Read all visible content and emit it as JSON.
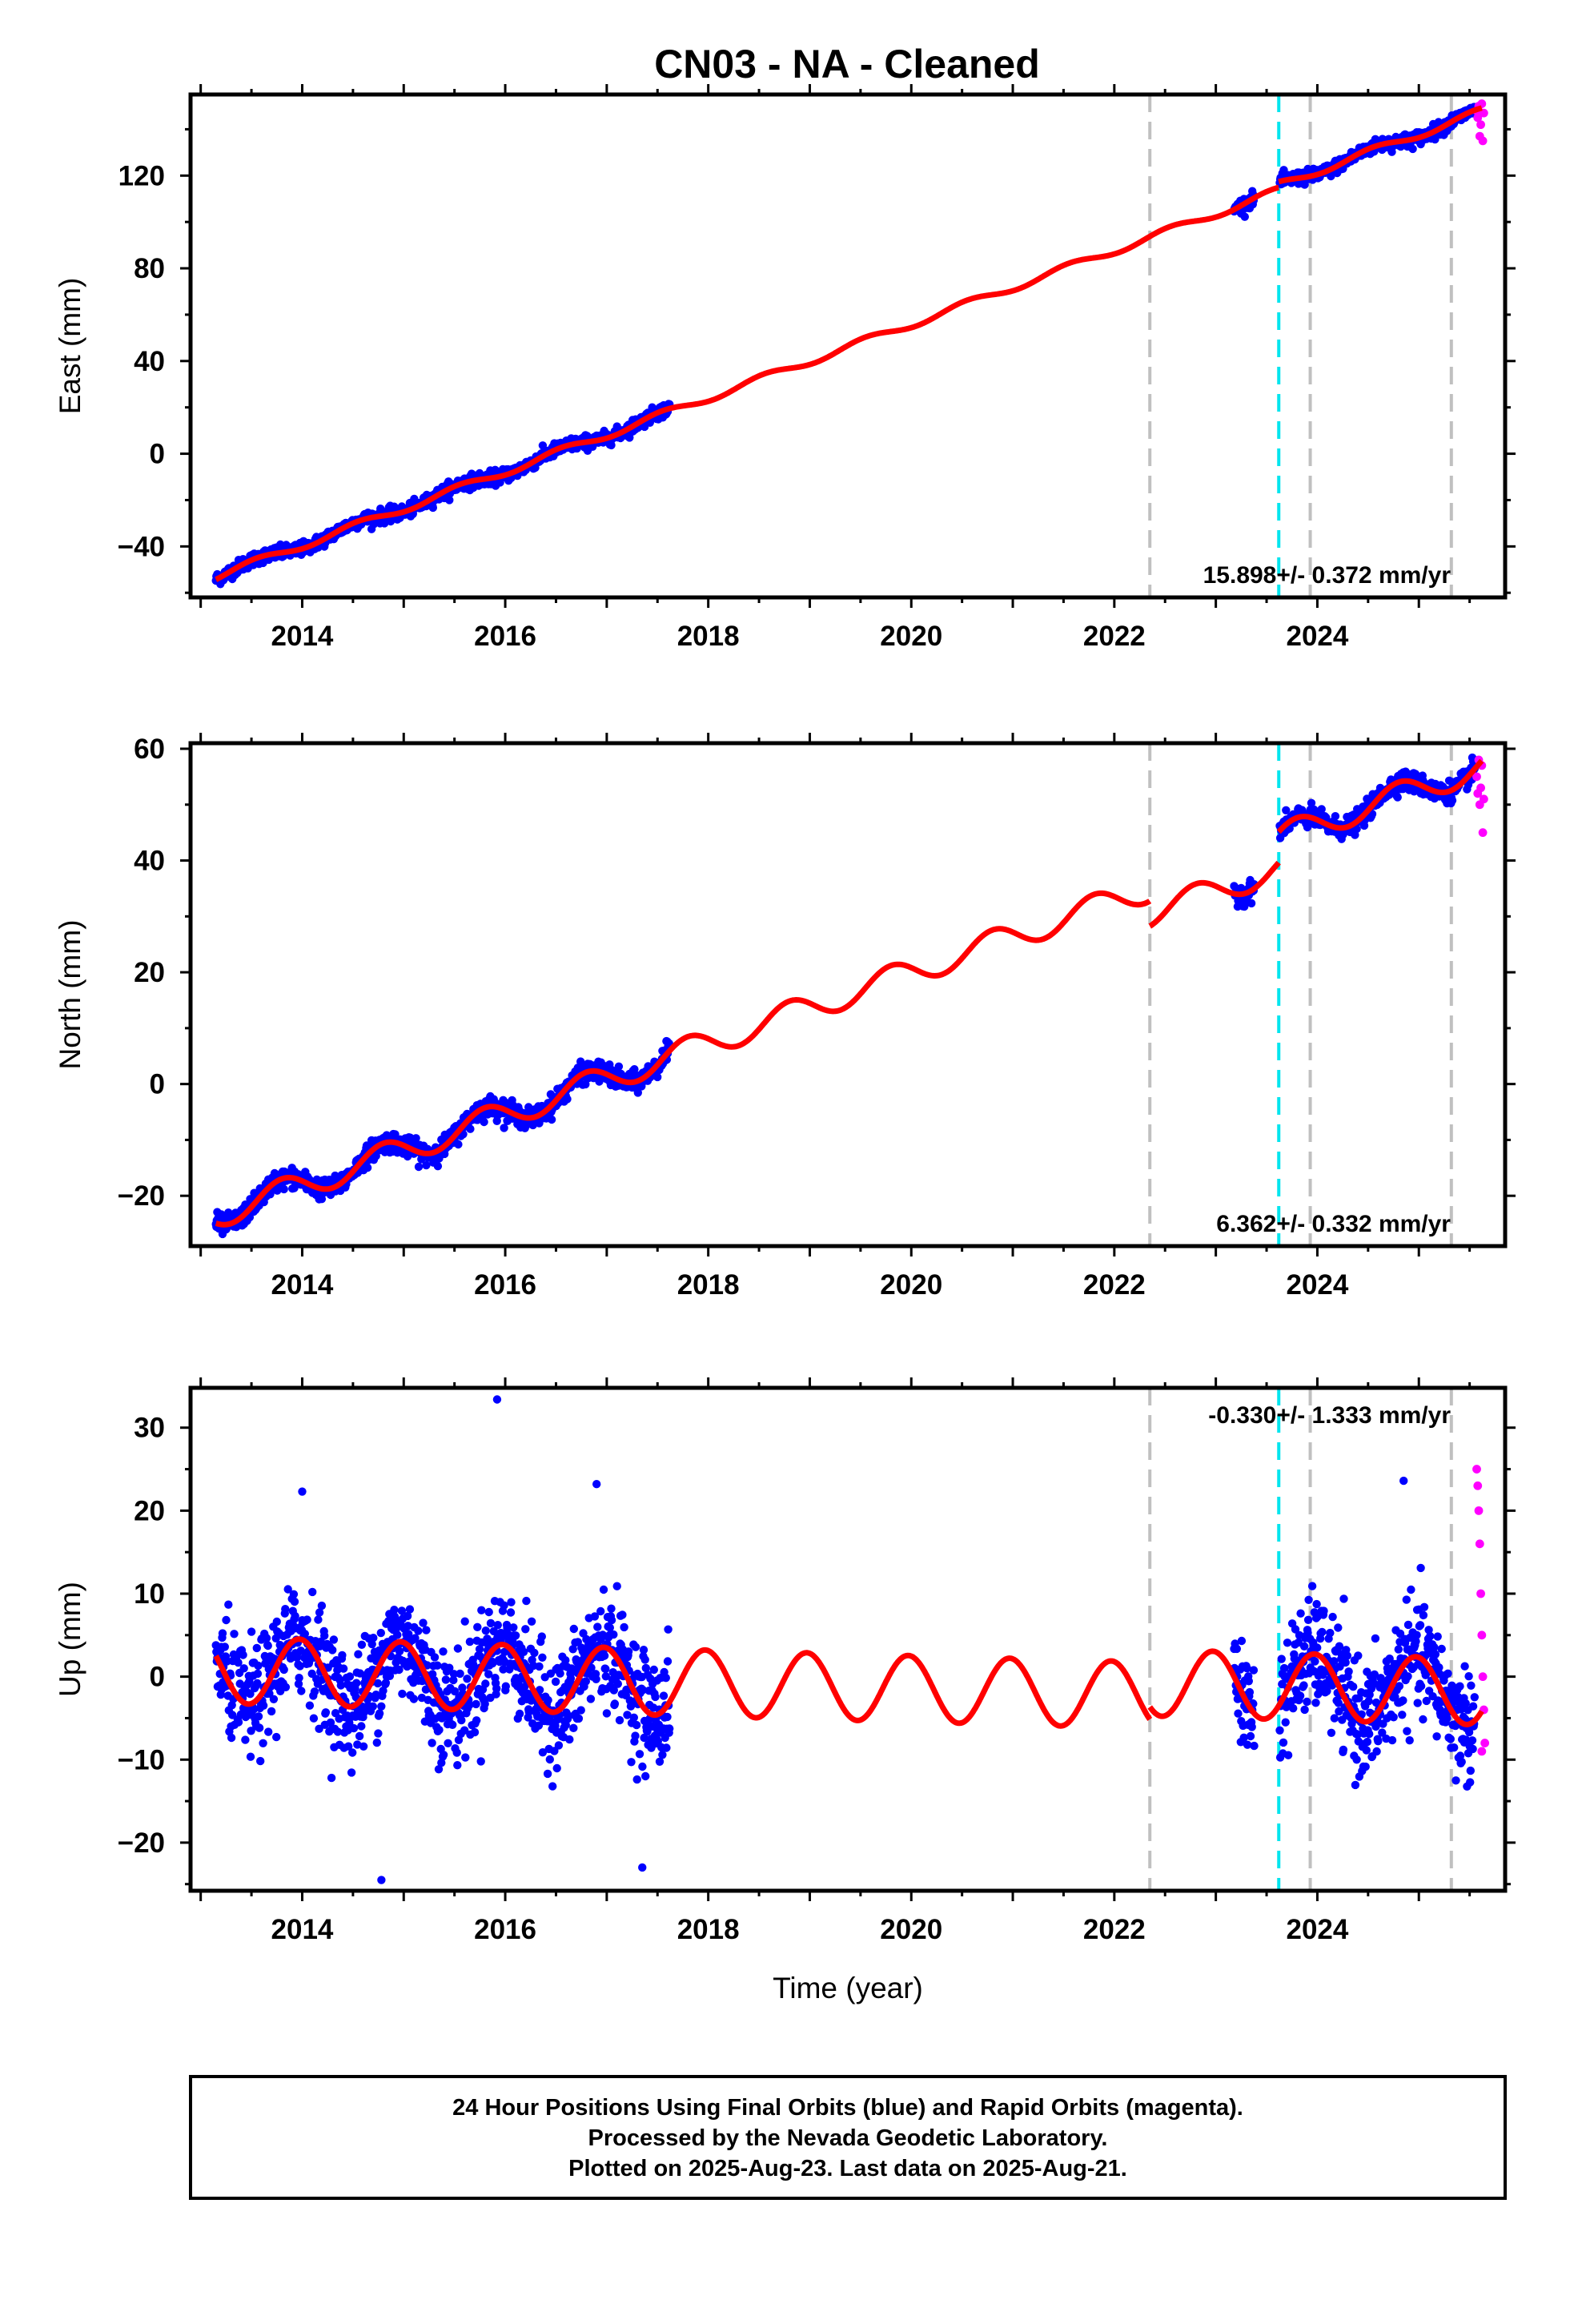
{
  "title": "CN03  - NA - Cleaned",
  "footer": {
    "lines": [
      "24 Hour Positions Using Final Orbits (blue) and Rapid Orbits (magenta).",
      "Processed by the Nevada Geodetic Laboratory.",
      "Plotted on 2025-Aug-23. Last data on 2025-Aug-21."
    ]
  },
  "colors": {
    "final_points": "#0000ff",
    "rapid_points": "#ff00ff",
    "model_line": "#ff0000",
    "equipment_change_line": "#c0c0c0",
    "earthquake_line": "#00e5ee"
  },
  "chart_data": [
    {
      "type": "scatter",
      "panel": "east",
      "ylabel": "East (mm)",
      "xlabel": "",
      "xlim": [
        2012.9,
        2025.85
      ],
      "ylim": [
        -62,
        155
      ],
      "xticks": [
        2014,
        2016,
        2018,
        2020,
        2022,
        2024
      ],
      "yticks": [
        -40,
        0,
        40,
        80,
        120
      ],
      "rate_label": "15.898+/- 0.372 mm/yr",
      "rate_label_position": "bottom-right",
      "vertical_lines": [
        {
          "x": 2022.35,
          "kind": "equipment"
        },
        {
          "x": 2023.62,
          "kind": "earthquake"
        },
        {
          "x": 2023.93,
          "kind": "equipment"
        },
        {
          "x": 2025.32,
          "kind": "equipment"
        }
      ],
      "model": {
        "x0": 2013.15,
        "y0": -53.0,
        "rate": 15.898,
        "offsets": [
          {
            "x": 2023.62,
            "dy": 2.5
          }
        ],
        "annual_amp": 1.6,
        "annual_phase": 0.3,
        "x_start": 2013.15,
        "x_end": 2025.62
      },
      "final_segments": [
        {
          "x_start": 2013.15,
          "x_end": 2017.62,
          "scatter": 2.6
        },
        {
          "x_start": 2023.18,
          "x_end": 2023.38,
          "scatter": 2.6
        },
        {
          "x_start": 2023.63,
          "x_end": 2025.55,
          "scatter": 2.6
        }
      ],
      "rapid_points": [
        {
          "x": 2025.57,
          "y": 148
        },
        {
          "x": 2025.58,
          "y": 145
        },
        {
          "x": 2025.59,
          "y": 150
        },
        {
          "x": 2025.6,
          "y": 137
        },
        {
          "x": 2025.61,
          "y": 142
        },
        {
          "x": 2025.62,
          "y": 151
        },
        {
          "x": 2025.63,
          "y": 135
        },
        {
          "x": 2025.64,
          "y": 147
        }
      ]
    },
    {
      "type": "scatter",
      "panel": "north",
      "ylabel": "North (mm)",
      "xlabel": "",
      "xlim": [
        2012.9,
        2025.85
      ],
      "ylim": [
        -29,
        61
      ],
      "xticks": [
        2014,
        2016,
        2018,
        2020,
        2022,
        2024
      ],
      "yticks": [
        -20,
        0,
        20,
        40,
        60
      ],
      "rate_label": "6.362+/- 0.332 mm/yr",
      "rate_label_position": "bottom-right",
      "vertical_lines": [
        {
          "x": 2022.35,
          "kind": "equipment"
        },
        {
          "x": 2023.62,
          "kind": "earthquake"
        },
        {
          "x": 2023.93,
          "kind": "equipment"
        },
        {
          "x": 2025.32,
          "kind": "equipment"
        }
      ],
      "model": {
        "x0": 2013.15,
        "y0": -23.5,
        "rate": 6.362,
        "offsets": [
          {
            "x": 2022.35,
            "dy": -4.5
          },
          {
            "x": 2023.62,
            "dy": 5.5
          }
        ],
        "annual_amp": 2.4,
        "annual_phase": 0.55,
        "x_start": 2013.15,
        "x_end": 2025.62
      },
      "final_segments": [
        {
          "x_start": 2013.15,
          "x_end": 2017.62,
          "scatter": 1.6
        },
        {
          "x_start": 2023.18,
          "x_end": 2023.38,
          "scatter": 1.6
        },
        {
          "x_start": 2023.63,
          "x_end": 2025.55,
          "scatter": 1.6
        }
      ],
      "rapid_points": [
        {
          "x": 2025.57,
          "y": 55
        },
        {
          "x": 2025.58,
          "y": 52
        },
        {
          "x": 2025.59,
          "y": 58
        },
        {
          "x": 2025.6,
          "y": 50
        },
        {
          "x": 2025.61,
          "y": 53
        },
        {
          "x": 2025.62,
          "y": 57
        },
        {
          "x": 2025.63,
          "y": 45
        },
        {
          "x": 2025.64,
          "y": 51
        }
      ]
    },
    {
      "type": "scatter",
      "panel": "up",
      "ylabel": "Up (mm)",
      "xlabel": "Time (year)",
      "xlim": [
        2012.9,
        2025.85
      ],
      "ylim": [
        -25.8,
        34.8
      ],
      "xticks": [
        2014,
        2016,
        2018,
        2020,
        2022,
        2024
      ],
      "yticks": [
        -20,
        -10,
        0,
        10,
        20,
        30
      ],
      "rate_label": "-0.330+/- 1.333 mm/yr",
      "rate_label_position": "top-right",
      "vertical_lines": [
        {
          "x": 2022.35,
          "kind": "equipment"
        },
        {
          "x": 2023.62,
          "kind": "earthquake"
        },
        {
          "x": 2023.93,
          "kind": "equipment"
        },
        {
          "x": 2025.32,
          "kind": "equipment"
        }
      ],
      "model": {
        "x0": 2013.15,
        "y0": 0.8,
        "rate": -0.33,
        "offsets": [
          {
            "x": 2022.35,
            "dy": 1.5
          }
        ],
        "annual_amp": 4.0,
        "annual_phase": 0.72,
        "x_start": 2013.15,
        "x_end": 2025.62
      },
      "final_segments": [
        {
          "x_start": 2013.15,
          "x_end": 2017.62,
          "scatter": 6.0
        },
        {
          "x_start": 2023.18,
          "x_end": 2023.38,
          "scatter": 6.0
        },
        {
          "x_start": 2023.63,
          "x_end": 2025.55,
          "scatter": 6.0
        }
      ],
      "outlier_points": [
        {
          "x": 2015.92,
          "y": 33.4
        },
        {
          "x": 2014.0,
          "y": 22.3
        },
        {
          "x": 2016.9,
          "y": 23.2
        },
        {
          "x": 2024.85,
          "y": 23.6
        },
        {
          "x": 2014.78,
          "y": -24.5
        },
        {
          "x": 2017.35,
          "y": -23.0
        }
      ],
      "rapid_points": [
        {
          "x": 2025.57,
          "y": 25
        },
        {
          "x": 2025.58,
          "y": 23
        },
        {
          "x": 2025.59,
          "y": 20
        },
        {
          "x": 2025.6,
          "y": 16
        },
        {
          "x": 2025.61,
          "y": 10
        },
        {
          "x": 2025.62,
          "y": 5
        },
        {
          "x": 2025.63,
          "y": 0
        },
        {
          "x": 2025.64,
          "y": -4
        },
        {
          "x": 2025.65,
          "y": -8
        },
        {
          "x": 2025.62,
          "y": -9
        }
      ]
    }
  ]
}
